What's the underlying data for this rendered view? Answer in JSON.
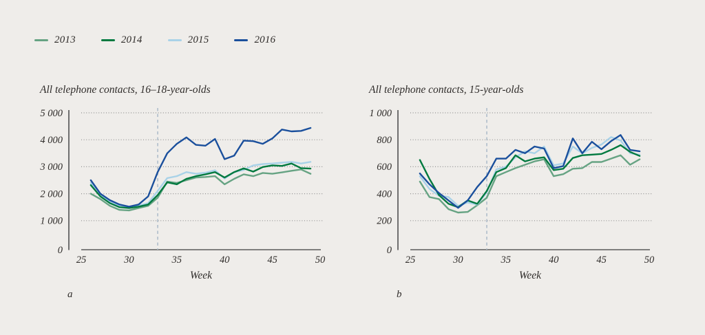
{
  "legend": {
    "items": [
      {
        "label": "2013",
        "color": "#66a383"
      },
      {
        "label": "2014",
        "color": "#00793f"
      },
      {
        "label": "2015",
        "color": "#a9d2e8"
      },
      {
        "label": "2016",
        "color": "#1a4f9c"
      }
    ]
  },
  "colors": {
    "background": "#efedea",
    "axis": "#6f6f6f",
    "gridline": "#8f8f8f",
    "week_marker": "#b2c0cc",
    "text": "#2f2c2a"
  },
  "chart_data": [
    {
      "type": "line",
      "id": "a",
      "panel_label": "a",
      "title": "All telephone contacts, 16–18-year-olds",
      "xlabel": "Week",
      "xlim": [
        25,
        50
      ],
      "ylim": [
        0,
        5000
      ],
      "x_ticks": [
        25,
        30,
        35,
        40,
        45,
        50
      ],
      "y_tick_labels": [
        "5 000",
        "4 000",
        "3 000",
        "2 000",
        "1 000",
        "0"
      ],
      "grid": "dotted-horizontal",
      "marker_week": 33,
      "x": [
        26,
        27,
        28,
        29,
        30,
        31,
        32,
        33,
        34,
        35,
        36,
        37,
        38,
        39,
        40,
        41,
        42,
        43,
        44,
        45,
        46,
        47,
        48,
        49
      ],
      "series": [
        {
          "name": "2013",
          "color": "#66a383",
          "values": [
            2000,
            1800,
            1550,
            1400,
            1380,
            1470,
            1550,
            1850,
            2450,
            2400,
            2500,
            2600,
            2620,
            2650,
            2350,
            2550,
            2720,
            2650,
            2770,
            2740,
            2790,
            2850,
            2900,
            2740
          ]
        },
        {
          "name": "2014",
          "color": "#00793f",
          "values": [
            2320,
            1900,
            1650,
            1500,
            1470,
            1520,
            1600,
            1950,
            2420,
            2350,
            2550,
            2650,
            2720,
            2800,
            2600,
            2800,
            2940,
            2820,
            2990,
            3050,
            3030,
            3120,
            2950,
            2930
          ]
        },
        {
          "name": "2015",
          "color": "#a9d2e8",
          "values": [
            2400,
            1950,
            1700,
            1550,
            1500,
            1560,
            1650,
            2100,
            2580,
            2650,
            2800,
            2740,
            2780,
            2870,
            2560,
            2800,
            2880,
            3050,
            3100,
            3120,
            3150,
            3180,
            3120,
            3180
          ]
        },
        {
          "name": "2016",
          "color": "#1a4f9c",
          "values": [
            2500,
            2000,
            1760,
            1600,
            1520,
            1600,
            1900,
            2800,
            3500,
            3850,
            4090,
            3810,
            3780,
            4030,
            3280,
            3410,
            3970,
            3950,
            3850,
            4050,
            4380,
            4310,
            4330,
            4440
          ]
        }
      ]
    },
    {
      "type": "line",
      "id": "b",
      "panel_label": "b",
      "title": "All telephone contacts, 15-year-olds",
      "xlabel": "Week",
      "xlim": [
        25,
        50
      ],
      "ylim": [
        0,
        1000
      ],
      "x_ticks": [
        25,
        30,
        35,
        40,
        45,
        50
      ],
      "y_tick_labels": [
        "1 000",
        "800",
        "600",
        "400",
        "200",
        "0"
      ],
      "grid": "dotted-horizontal",
      "marker_week": 33,
      "x": [
        26,
        27,
        28,
        29,
        30,
        31,
        32,
        33,
        34,
        35,
        36,
        37,
        38,
        39,
        40,
        41,
        42,
        43,
        44,
        45,
        46,
        47,
        48,
        49
      ],
      "series": [
        {
          "name": "2013",
          "color": "#66a383",
          "values": [
            490,
            375,
            360,
            285,
            260,
            265,
            315,
            370,
            530,
            560,
            590,
            615,
            640,
            655,
            530,
            545,
            585,
            590,
            635,
            635,
            660,
            685,
            615,
            655
          ]
        },
        {
          "name": "2014",
          "color": "#00793f",
          "values": [
            650,
            510,
            390,
            325,
            300,
            350,
            325,
            420,
            560,
            590,
            685,
            640,
            660,
            670,
            575,
            585,
            665,
            685,
            690,
            695,
            725,
            760,
            710,
            680
          ]
        },
        {
          "name": "2015",
          "color": "#a9d2e8",
          "values": [
            530,
            435,
            385,
            375,
            310,
            335,
            320,
            410,
            580,
            600,
            670,
            715,
            700,
            750,
            610,
            625,
            750,
            700,
            740,
            765,
            820,
            795,
            700,
            690
          ]
        },
        {
          "name": "2016",
          "color": "#1a4f9c",
          "values": [
            550,
            470,
            405,
            350,
            295,
            350,
            450,
            530,
            660,
            660,
            725,
            700,
            750,
            735,
            590,
            605,
            810,
            700,
            785,
            730,
            790,
            835,
            725,
            715
          ]
        }
      ]
    }
  ]
}
